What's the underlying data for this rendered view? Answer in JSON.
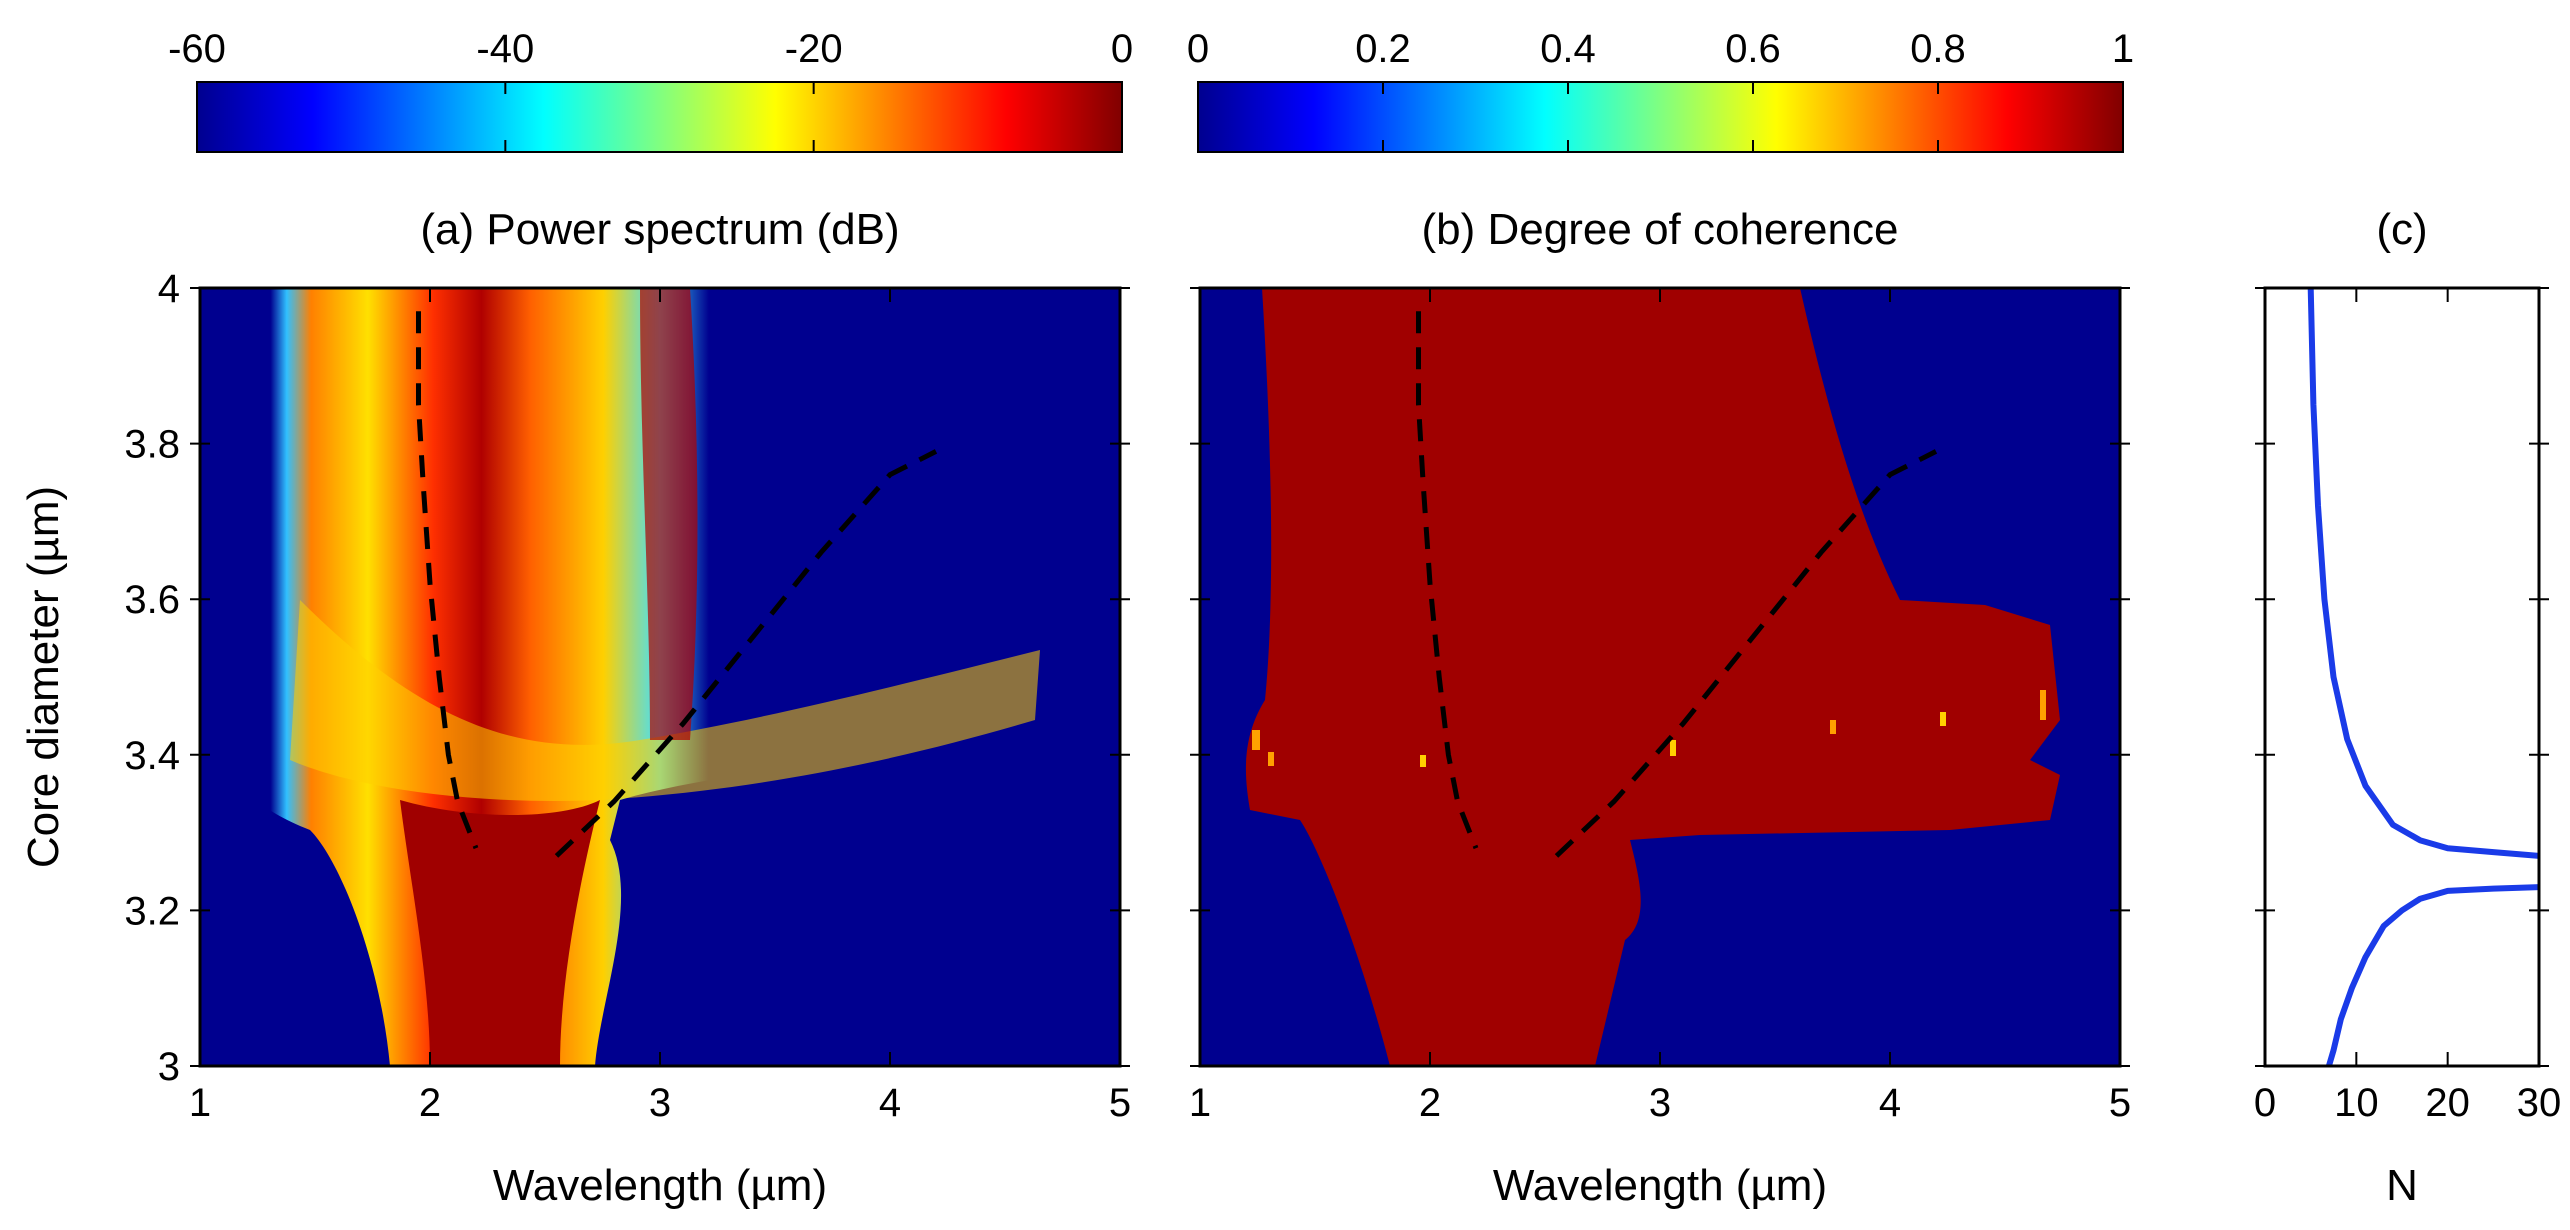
{
  "chart_data": [
    {
      "id": "a",
      "type": "heatmap",
      "title": "(a) Power spectrum (dB)",
      "xlabel": "Wavelength (µm)",
      "ylabel": "Core diameter (µm)",
      "xlim": [
        1,
        5
      ],
      "ylim": [
        3,
        4
      ],
      "xticks": [
        1,
        2,
        3,
        4,
        5
      ],
      "yticks": [
        3,
        3.2,
        3.4,
        3.6,
        3.8,
        4
      ],
      "xtick_labels": [
        "1",
        "2",
        "3",
        "4",
        "5"
      ],
      "ytick_labels": [
        "3",
        "3.2",
        "3.4",
        "3.6",
        "3.8",
        "4"
      ],
      "colorbar": {
        "range": [
          -60,
          0
        ],
        "ticks": [
          -60,
          -40,
          -20,
          0
        ],
        "tick_labels": [
          "-60",
          "-40",
          "-20",
          "0"
        ],
        "colormap": "jet"
      },
      "dashed_curves": [
        {
          "name": "left-branch",
          "x": [
            1.95,
            1.95,
            1.97,
            2.0,
            2.04,
            2.08,
            2.12,
            2.2
          ],
          "y": [
            3.97,
            3.85,
            3.75,
            3.62,
            3.5,
            3.4,
            3.34,
            3.28
          ]
        },
        {
          "name": "right-branch",
          "x": [
            2.55,
            2.8,
            3.1,
            3.4,
            3.7,
            4.0,
            4.2
          ],
          "y": [
            3.27,
            3.34,
            3.44,
            3.55,
            3.66,
            3.76,
            3.79
          ]
        }
      ]
    },
    {
      "id": "b",
      "type": "heatmap",
      "title": "(b) Degree of coherence",
      "xlabel": "Wavelength (µm)",
      "xlim": [
        1,
        5
      ],
      "ylim": [
        3,
        4
      ],
      "xticks": [
        1,
        2,
        3,
        4,
        5
      ],
      "xtick_labels": [
        "1",
        "2",
        "3",
        "4",
        "5"
      ],
      "colorbar": {
        "range": [
          0,
          1
        ],
        "ticks": [
          0,
          0.2,
          0.4,
          0.6,
          0.8,
          1
        ],
        "tick_labels": [
          "0",
          "0.2",
          "0.4",
          "0.6",
          "0.8",
          "1"
        ],
        "colormap": "jet"
      },
      "dashed_curves": [
        {
          "name": "left-branch",
          "x": [
            1.95,
            1.95,
            1.97,
            2.0,
            2.04,
            2.08,
            2.12,
            2.2
          ],
          "y": [
            3.97,
            3.85,
            3.75,
            3.62,
            3.5,
            3.4,
            3.34,
            3.28
          ]
        },
        {
          "name": "right-branch",
          "x": [
            2.55,
            2.8,
            3.1,
            3.4,
            3.7,
            4.0,
            4.2
          ],
          "y": [
            3.27,
            3.34,
            3.44,
            3.55,
            3.66,
            3.76,
            3.79
          ]
        }
      ]
    },
    {
      "id": "c",
      "type": "line",
      "title": "(c)",
      "xlabel": "N",
      "xlim": [
        0,
        30
      ],
      "ylim": [
        3,
        4
      ],
      "xticks": [
        0,
        10,
        20,
        30
      ],
      "xtick_labels": [
        "0",
        "10",
        "20",
        "30"
      ],
      "series": [
        {
          "name": "N-upper",
          "x": [
            5,
            5.3,
            5.8,
            6.5,
            7.5,
            9,
            11,
            14,
            17,
            20,
            25,
            30
          ],
          "y": [
            4.0,
            3.85,
            3.72,
            3.6,
            3.5,
            3.42,
            3.36,
            3.31,
            3.29,
            3.28,
            3.275,
            3.27
          ]
        },
        {
          "name": "N-lower",
          "x": [
            30,
            25,
            20,
            17,
            15,
            13,
            11,
            9.5,
            8.3,
            7.5,
            7
          ],
          "y": [
            3.23,
            3.228,
            3.225,
            3.215,
            3.2,
            3.18,
            3.14,
            3.1,
            3.06,
            3.02,
            3.0
          ]
        }
      ],
      "line_color": "#1a3be8"
    }
  ],
  "colors": {
    "axis": "#000000",
    "background_blue": "#00008f",
    "curve_blue": "#1a3be8"
  }
}
